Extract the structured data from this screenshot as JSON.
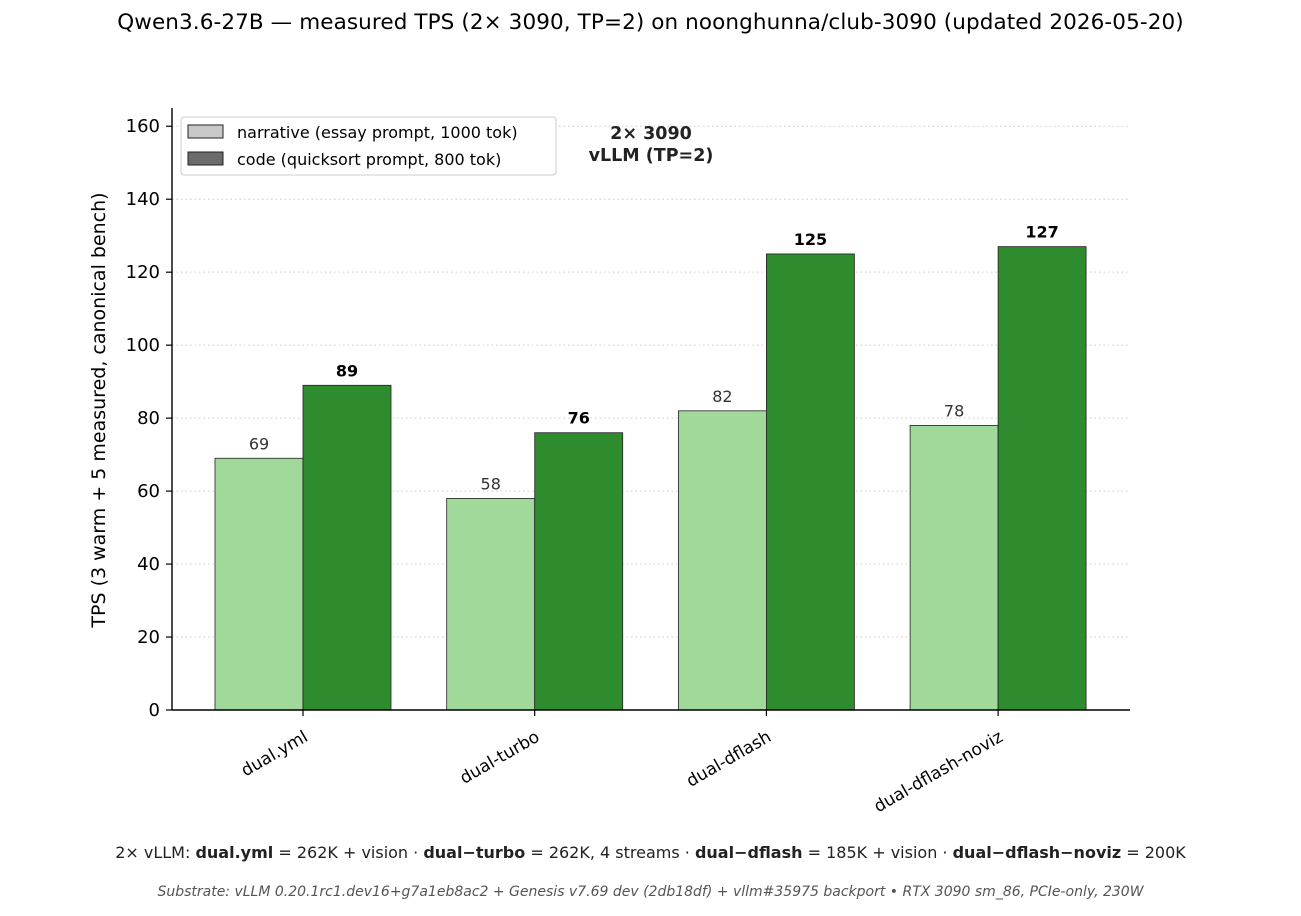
{
  "title": "Qwen3.6-27B  —  measured TPS (2× 3090, TP=2)  on  noonghunna/club-3090  (updated 2026-05-20)",
  "chart_data": {
    "type": "bar",
    "categories": [
      "dual.yml",
      "dual-turbo",
      "dual-dflash",
      "dual-dflash-noviz"
    ],
    "series": [
      {
        "name": "narrative (essay prompt, 1000 tok)",
        "values": [
          69,
          58,
          82,
          78
        ],
        "color": "#a1d99b",
        "legend_color": "#c8c8c8"
      },
      {
        "name": "code (quicksort prompt, 800 tok)",
        "values": [
          89,
          76,
          125,
          127
        ],
        "color": "#2e8b2e",
        "legend_color": "#6b6b6b"
      }
    ],
    "xlabel": "",
    "ylabel": "TPS  (3 warm + 5 measured, canonical bench)",
    "ylim": [
      0,
      165
    ],
    "yticks": [
      0,
      20,
      40,
      60,
      80,
      100,
      120,
      140,
      160
    ],
    "grid": "y-dotted",
    "legend": "top-left",
    "annotation": [
      "2× 3090",
      "vLLM (TP=2)"
    ]
  },
  "footer": {
    "prefix": "2× vLLM:  ",
    "configs": [
      {
        "name": "dual.yml",
        "desc": " = 262K + vision"
      },
      {
        "name": "dual−turbo",
        "desc": " = 262K, 4 streams"
      },
      {
        "name": "dual−dflash",
        "desc": " = 185K + vision"
      },
      {
        "name": "dual−dflash−noviz",
        "desc": " = 200K"
      }
    ],
    "separator": "  ·  ",
    "substrate": "Substrate: vLLM 0.20.1rc1.dev16+g7a1eb8ac2 + Genesis v7.69 dev (2db18df) + vllm#35975 backport  •  RTX 3090 sm_86, PCIe-only, 230W"
  }
}
